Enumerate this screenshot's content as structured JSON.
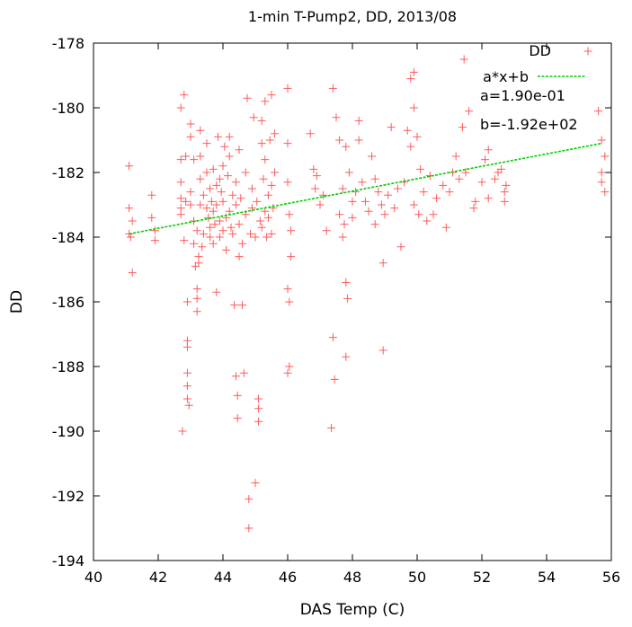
{
  "chart_data": {
    "type": "scatter",
    "title": "1-min T-Pump2, DD, 2013/08",
    "xlabel": "DAS Temp (C)",
    "ylabel": "DD",
    "xlim": [
      40,
      56
    ],
    "ylim": [
      -194,
      -178
    ],
    "xticks": [
      "40",
      "42",
      "44",
      "46",
      "48",
      "50",
      "52",
      "54",
      "56"
    ],
    "yticks": [
      "-178",
      "-180",
      "-182",
      "-184",
      "-186",
      "-188",
      "-190",
      "-192",
      "-194"
    ],
    "grid": false,
    "legend_position": "top-right",
    "colors": {
      "points": "#ff5a5a",
      "fit": "#00cc00"
    },
    "series": [
      {
        "name": "DD",
        "marker": "plus",
        "points": [
          [
            41.1,
            -181.8
          ],
          [
            41.1,
            -183.1
          ],
          [
            41.1,
            -183.9
          ],
          [
            41.15,
            -184.0
          ],
          [
            41.2,
            -185.1
          ],
          [
            41.2,
            -183.5
          ],
          [
            41.8,
            -182.7
          ],
          [
            41.8,
            -183.4
          ],
          [
            41.9,
            -183.8
          ],
          [
            41.9,
            -184.1
          ],
          [
            42.7,
            -182.3
          ],
          [
            42.7,
            -182.8
          ],
          [
            42.7,
            -183.1
          ],
          [
            42.7,
            -183.3
          ],
          [
            42.7,
            -180.0
          ],
          [
            42.7,
            -181.6
          ],
          [
            42.75,
            -190.0
          ],
          [
            42.8,
            -184.1
          ],
          [
            42.8,
            -179.6
          ],
          [
            42.85,
            -181.5
          ],
          [
            42.9,
            -187.2
          ],
          [
            42.9,
            -187.4
          ],
          [
            42.9,
            -188.2
          ],
          [
            42.9,
            -188.6
          ],
          [
            42.9,
            -189.0
          ],
          [
            42.95,
            -189.2
          ],
          [
            42.9,
            -186.0
          ],
          [
            42.85,
            -182.9
          ],
          [
            43.0,
            -183.0
          ],
          [
            43.0,
            -182.6
          ],
          [
            43.0,
            -180.5
          ],
          [
            43.0,
            -180.9
          ],
          [
            43.1,
            -181.6
          ],
          [
            43.1,
            -183.5
          ],
          [
            43.1,
            -184.2
          ],
          [
            43.15,
            -184.9
          ],
          [
            43.2,
            -185.6
          ],
          [
            43.2,
            -185.9
          ],
          [
            43.2,
            -186.3
          ],
          [
            43.2,
            -183.8
          ],
          [
            43.25,
            -184.6
          ],
          [
            43.25,
            -184.8
          ],
          [
            43.3,
            -182.2
          ],
          [
            43.3,
            -183.0
          ],
          [
            43.3,
            -181.5
          ],
          [
            43.3,
            -180.7
          ],
          [
            43.35,
            -184.3
          ],
          [
            43.4,
            -183.9
          ],
          [
            43.4,
            -182.7
          ],
          [
            43.5,
            -183.1
          ],
          [
            43.5,
            -182.0
          ],
          [
            43.5,
            -181.1
          ],
          [
            43.55,
            -183.4
          ],
          [
            43.6,
            -184.0
          ],
          [
            43.6,
            -182.5
          ],
          [
            43.6,
            -183.7
          ],
          [
            43.65,
            -182.9
          ],
          [
            43.7,
            -181.9
          ],
          [
            43.7,
            -183.2
          ],
          [
            43.7,
            -184.2
          ],
          [
            43.75,
            -183.6
          ],
          [
            43.8,
            -182.4
          ],
          [
            43.8,
            -185.7
          ],
          [
            43.8,
            -183.0
          ],
          [
            43.85,
            -180.9
          ],
          [
            43.9,
            -182.2
          ],
          [
            43.9,
            -183.5
          ],
          [
            43.9,
            -184.0
          ],
          [
            43.95,
            -182.6
          ],
          [
            44.0,
            -183.8
          ],
          [
            44.0,
            -182.9
          ],
          [
            44.0,
            -181.8
          ],
          [
            44.05,
            -181.2
          ],
          [
            44.1,
            -183.4
          ],
          [
            44.1,
            -184.4
          ],
          [
            44.15,
            -182.1
          ],
          [
            44.2,
            -183.2
          ],
          [
            44.2,
            -181.5
          ],
          [
            44.2,
            -180.9
          ],
          [
            44.25,
            -183.7
          ],
          [
            44.3,
            -182.7
          ],
          [
            44.3,
            -183.9
          ],
          [
            44.35,
            -186.1
          ],
          [
            44.4,
            -183.0
          ],
          [
            44.4,
            -182.3
          ],
          [
            44.4,
            -188.3
          ],
          [
            44.45,
            -188.9
          ],
          [
            44.45,
            -189.6
          ],
          [
            44.5,
            -181.3
          ],
          [
            44.5,
            -183.6
          ],
          [
            44.5,
            -184.6
          ],
          [
            44.55,
            -182.8
          ],
          [
            44.6,
            -186.1
          ],
          [
            44.6,
            -184.2
          ],
          [
            44.65,
            -188.2
          ],
          [
            44.7,
            -183.3
          ],
          [
            44.7,
            -182.0
          ],
          [
            44.75,
            -179.7
          ],
          [
            44.8,
            -192.1
          ],
          [
            44.8,
            -193.0
          ],
          [
            44.85,
            -183.9
          ],
          [
            44.9,
            -182.5
          ],
          [
            44.9,
            -183.1
          ],
          [
            44.95,
            -180.3
          ],
          [
            45.0,
            -191.6
          ],
          [
            45.0,
            -184.0
          ],
          [
            45.05,
            -182.9
          ],
          [
            45.1,
            -189.0
          ],
          [
            45.1,
            -189.3
          ],
          [
            45.1,
            -189.7
          ],
          [
            45.15,
            -183.5
          ],
          [
            45.2,
            -181.1
          ],
          [
            45.2,
            -180.4
          ],
          [
            45.2,
            -183.7
          ],
          [
            45.25,
            -182.2
          ],
          [
            45.3,
            -181.6
          ],
          [
            45.3,
            -179.8
          ],
          [
            45.3,
            -183.2
          ],
          [
            45.35,
            -184.0
          ],
          [
            45.4,
            -182.7
          ],
          [
            45.4,
            -183.4
          ],
          [
            45.45,
            -181.0
          ],
          [
            45.5,
            -179.6
          ],
          [
            45.5,
            -182.4
          ],
          [
            45.5,
            -183.9
          ],
          [
            45.55,
            -183.1
          ],
          [
            45.6,
            -182.0
          ],
          [
            45.6,
            -180.8
          ],
          [
            46.0,
            -179.4
          ],
          [
            46.0,
            -181.1
          ],
          [
            46.0,
            -182.3
          ],
          [
            46.05,
            -183.3
          ],
          [
            46.0,
            -185.6
          ],
          [
            46.05,
            -186.0
          ],
          [
            46.0,
            -188.2
          ],
          [
            46.05,
            -188.0
          ],
          [
            46.1,
            -184.6
          ],
          [
            46.1,
            -183.8
          ],
          [
            46.7,
            -180.8
          ],
          [
            46.8,
            -181.9
          ],
          [
            46.85,
            -182.5
          ],
          [
            46.9,
            -182.1
          ],
          [
            47.0,
            -183.0
          ],
          [
            47.1,
            -182.7
          ],
          [
            47.2,
            -183.8
          ],
          [
            47.35,
            -189.9
          ],
          [
            47.4,
            -187.1
          ],
          [
            47.45,
            -188.4
          ],
          [
            47.4,
            -179.4
          ],
          [
            47.5,
            -180.3
          ],
          [
            47.6,
            -181.0
          ],
          [
            47.6,
            -183.3
          ],
          [
            47.7,
            -182.5
          ],
          [
            47.7,
            -184.0
          ],
          [
            47.75,
            -183.6
          ],
          [
            47.8,
            -187.7
          ],
          [
            47.8,
            -185.4
          ],
          [
            47.85,
            -185.9
          ],
          [
            47.8,
            -181.2
          ],
          [
            47.9,
            -182.0
          ],
          [
            48.0,
            -182.9
          ],
          [
            48.0,
            -183.4
          ],
          [
            48.1,
            -182.6
          ],
          [
            48.2,
            -180.4
          ],
          [
            48.2,
            -181.0
          ],
          [
            48.3,
            -182.3
          ],
          [
            48.4,
            -182.9
          ],
          [
            48.5,
            -183.2
          ],
          [
            48.6,
            -181.5
          ],
          [
            48.7,
            -182.2
          ],
          [
            48.7,
            -183.6
          ],
          [
            48.8,
            -182.6
          ],
          [
            48.9,
            -183.0
          ],
          [
            48.95,
            -187.5
          ],
          [
            48.95,
            -184.8
          ],
          [
            49.0,
            -183.3
          ],
          [
            49.1,
            -182.7
          ],
          [
            49.2,
            -180.6
          ],
          [
            49.3,
            -183.1
          ],
          [
            49.4,
            -182.5
          ],
          [
            49.5,
            -184.3
          ],
          [
            49.6,
            -182.3
          ],
          [
            49.7,
            -180.7
          ],
          [
            49.8,
            -179.1
          ],
          [
            49.8,
            -181.2
          ],
          [
            49.9,
            -183.0
          ],
          [
            49.9,
            -178.9
          ],
          [
            49.9,
            -180.0
          ],
          [
            50.0,
            -180.9
          ],
          [
            50.05,
            -183.3
          ],
          [
            50.1,
            -181.9
          ],
          [
            50.2,
            -182.6
          ],
          [
            50.3,
            -183.5
          ],
          [
            50.4,
            -182.1
          ],
          [
            50.5,
            -183.3
          ],
          [
            50.6,
            -182.8
          ],
          [
            50.8,
            -182.4
          ],
          [
            50.9,
            -183.7
          ],
          [
            51.0,
            -182.6
          ],
          [
            51.1,
            -182.0
          ],
          [
            51.2,
            -181.5
          ],
          [
            51.3,
            -182.2
          ],
          [
            51.4,
            -180.6
          ],
          [
            51.45,
            -178.5
          ],
          [
            51.5,
            -182.0
          ],
          [
            51.6,
            -180.1
          ],
          [
            51.75,
            -183.1
          ],
          [
            51.8,
            -182.9
          ],
          [
            52.0,
            -182.3
          ],
          [
            52.1,
            -181.6
          ],
          [
            52.2,
            -182.8
          ],
          [
            52.2,
            -181.3
          ],
          [
            52.4,
            -182.2
          ],
          [
            52.5,
            -182.0
          ],
          [
            52.6,
            -181.9
          ],
          [
            52.7,
            -182.6
          ],
          [
            52.7,
            -182.9
          ],
          [
            52.75,
            -182.4
          ],
          [
            55.6,
            -180.1
          ],
          [
            55.7,
            -181.0
          ],
          [
            55.7,
            -182.0
          ],
          [
            55.7,
            -182.3
          ],
          [
            55.8,
            -181.5
          ],
          [
            55.8,
            -182.6
          ]
        ]
      },
      {
        "name": "a*x+b",
        "type": "line",
        "x": [
          41.1,
          55.7
        ],
        "y": [
          -183.9,
          -181.1
        ]
      }
    ],
    "annotations": [
      "a=1.90e-01",
      "b=-1.92e+02"
    ]
  }
}
